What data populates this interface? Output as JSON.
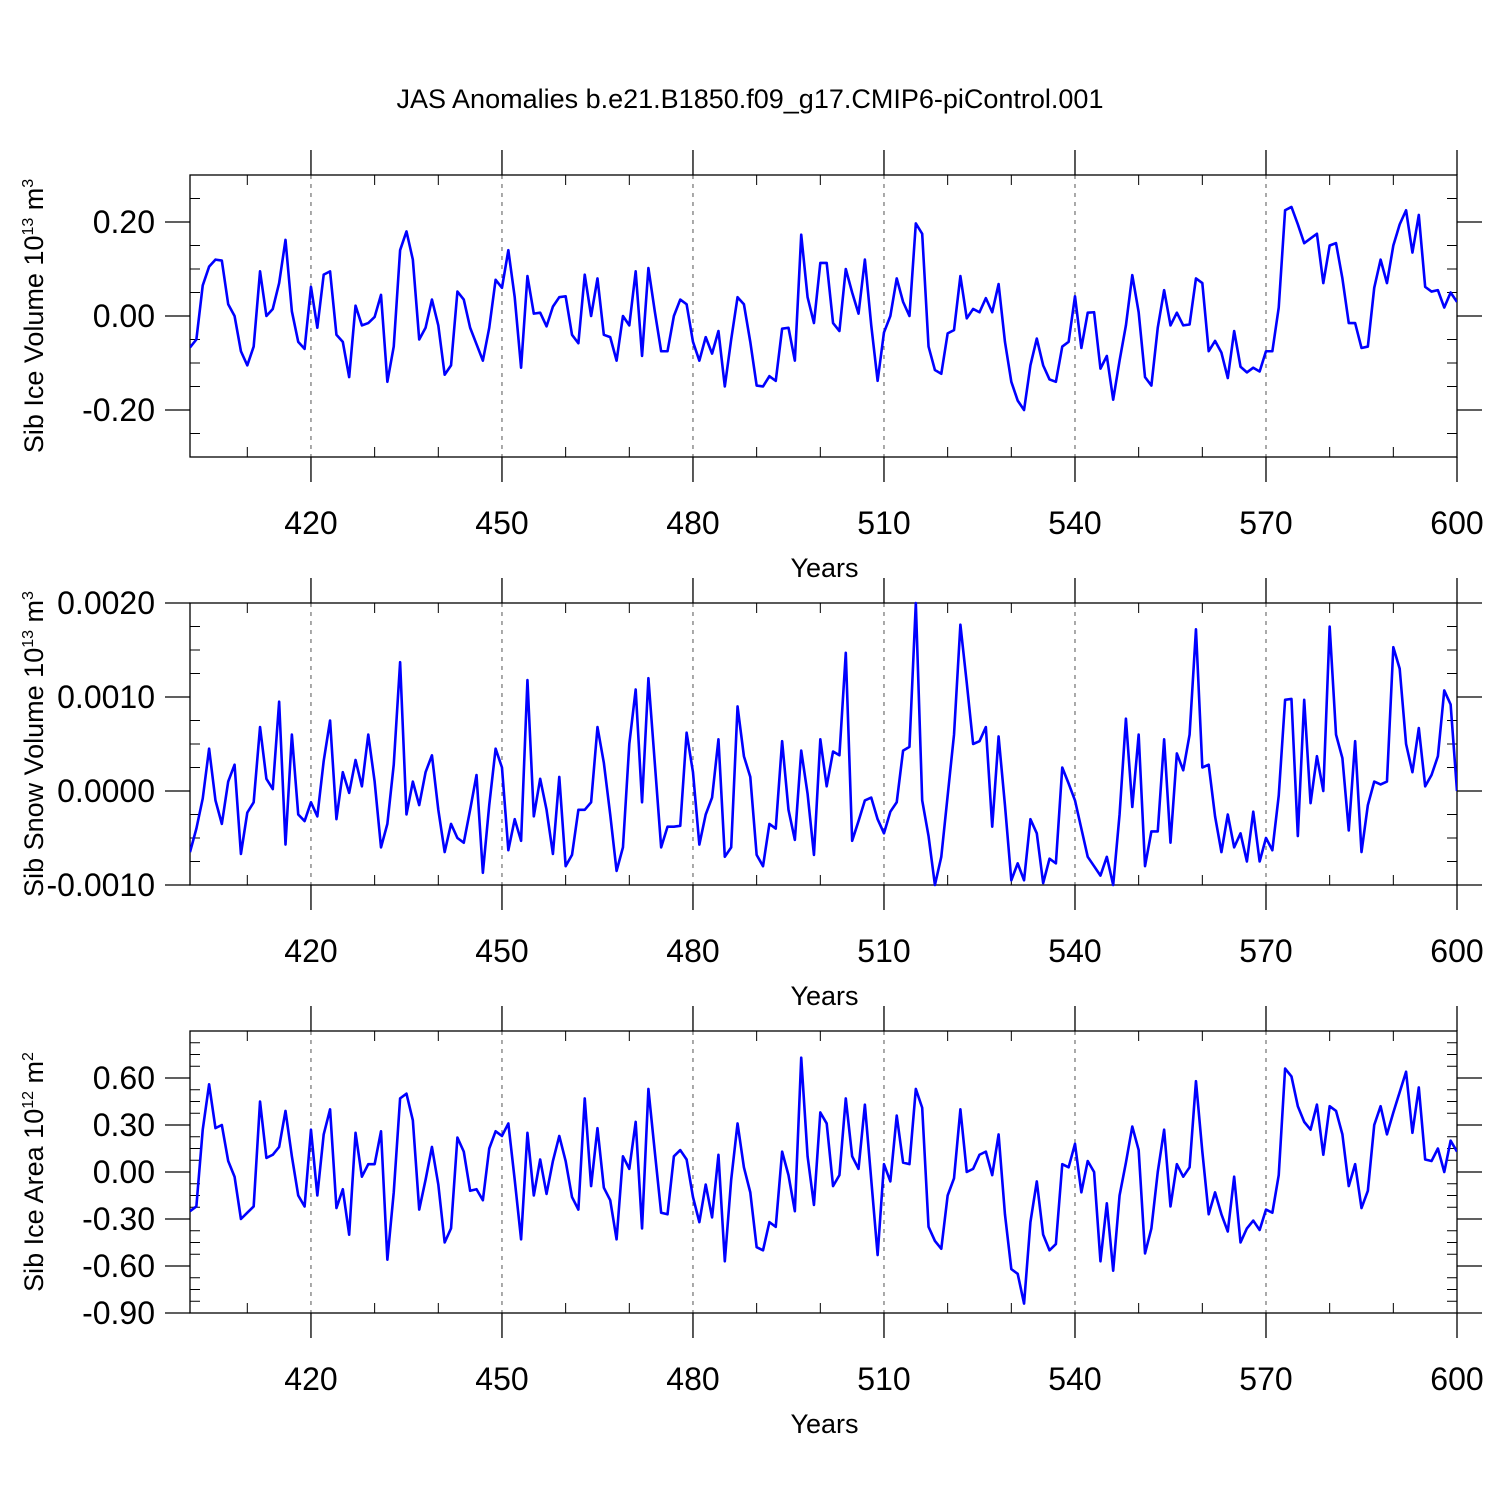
{
  "title": "JAS Anomalies b.e21.B1850.f09_g17.CMIP6-piControl.001",
  "line_color": "#0000ff",
  "chart_data": [
    {
      "type": "line",
      "id": "vol",
      "xlabel": "Years",
      "ylabel_base": "Sib Ice Volume 10",
      "ylabel_exp": "13",
      "ylabel_unit": " m",
      "ylabel_unit_exp": "3",
      "xlim": [
        401,
        600
      ],
      "ylim": [
        -0.3,
        0.3
      ],
      "xticks": [
        420,
        450,
        480,
        510,
        540,
        570,
        600
      ],
      "yticks": [
        -0.2,
        0.0,
        0.2
      ],
      "ytick_labels": [
        "-0.20",
        "0.00",
        "0.20"
      ],
      "grid": "dashed vertical lines at major x ticks",
      "series": [
        {
          "x_start": 401,
          "values": [
            -0.067,
            -0.05,
            0.065,
            0.105,
            0.12,
            0.118,
            0.025,
            0.0,
            -0.075,
            -0.105,
            -0.065,
            0.095,
            0.0,
            0.015,
            0.07,
            0.162,
            0.01,
            -0.055,
            -0.07,
            0.062,
            -0.025,
            0.088,
            0.095,
            -0.04,
            -0.055,
            -0.13,
            0.022,
            -0.02,
            -0.015,
            -0.002,
            0.045,
            -0.14,
            -0.065,
            0.14,
            0.18,
            0.12,
            -0.05,
            -0.025,
            0.035,
            -0.02,
            -0.125,
            -0.105,
            0.052,
            0.035,
            -0.025,
            -0.06,
            -0.095,
            -0.025,
            0.077,
            0.06,
            0.14,
            0.04,
            -0.11,
            0.085,
            0.005,
            0.007,
            -0.022,
            0.02,
            0.04,
            0.042,
            -0.04,
            -0.058,
            0.088,
            0.0,
            0.08,
            -0.04,
            -0.045,
            -0.095,
            0.0,
            -0.02,
            0.095,
            -0.085,
            0.102,
            0.01,
            -0.075,
            -0.075,
            0.0,
            0.035,
            0.025,
            -0.055,
            -0.095,
            -0.045,
            -0.08,
            -0.032,
            -0.15,
            -0.05,
            0.04,
            0.025,
            -0.055,
            -0.148,
            -0.15,
            -0.128,
            -0.138,
            -0.027,
            -0.025,
            -0.095,
            0.173,
            0.04,
            -0.015,
            0.113,
            0.113,
            -0.015,
            -0.032,
            0.1,
            0.05,
            0.005,
            0.12,
            -0.02,
            -0.138,
            -0.035,
            0.0,
            0.08,
            0.03,
            0.0,
            0.197,
            0.175,
            -0.065,
            -0.115,
            -0.123,
            -0.037,
            -0.03,
            0.085,
            -0.005,
            0.015,
            0.008,
            0.038,
            0.008,
            0.068,
            -0.055,
            -0.14,
            -0.18,
            -0.2,
            -0.105,
            -0.048,
            -0.105,
            -0.135,
            -0.14,
            -0.065,
            -0.055,
            0.042,
            -0.068,
            0.007,
            0.008,
            -0.112,
            -0.085,
            -0.178,
            -0.095,
            -0.02,
            0.087,
            0.008,
            -0.13,
            -0.148,
            -0.025,
            0.055,
            -0.02,
            0.007,
            -0.02,
            -0.018,
            0.08,
            0.07,
            -0.075,
            -0.053,
            -0.078,
            -0.132,
            -0.032,
            -0.108,
            -0.12,
            -0.11,
            -0.118,
            -0.075,
            -0.075,
            0.018,
            0.225,
            0.232,
            0.195,
            0.155,
            0.165,
            0.175,
            0.07,
            0.15,
            0.155,
            0.08,
            -0.015,
            -0.015,
            -0.068,
            -0.065,
            0.06,
            0.12,
            0.07,
            0.15,
            0.195,
            0.225,
            0.135,
            0.215,
            0.062,
            0.052,
            0.055,
            0.018,
            0.05,
            0.03
          ]
        }
      ]
    },
    {
      "type": "line",
      "id": "snow",
      "xlabel": "Years",
      "ylabel_base": "Sib Snow Volume 10",
      "ylabel_exp": "13",
      "ylabel_unit": " m",
      "ylabel_unit_exp": "3",
      "xlim": [
        401,
        600
      ],
      "ylim": [
        -0.001,
        0.002
      ],
      "xticks": [
        420,
        450,
        480,
        510,
        540,
        570,
        600
      ],
      "yticks": [
        -0.001,
        0.0,
        0.001,
        0.002
      ],
      "ytick_labels": [
        "-0.0010",
        "0.0000",
        "0.0010",
        "0.0020"
      ],
      "grid": "dashed vertical lines at major x ticks",
      "series": [
        {
          "x_start": 401,
          "values": [
            -0.00065,
            -0.0004,
            -8e-05,
            0.00045,
            -0.0001,
            -0.00035,
            0.0001,
            0.00028,
            -0.00067,
            -0.00023,
            -0.00012,
            0.00068,
            0.00013,
            2e-05,
            0.00095,
            -0.00057,
            0.0006,
            -0.00025,
            -0.00032,
            -0.00012,
            -0.00027,
            0.00032,
            0.00075,
            -0.0003,
            0.0002,
            -2e-05,
            0.00033,
            5e-05,
            0.0006,
            0.0001,
            -0.0006,
            -0.00035,
            0.00028,
            0.00137,
            -0.00025,
            0.0001,
            -0.00015,
            0.0002,
            0.00038,
            -0.0002,
            -0.00065,
            -0.00035,
            -0.0005,
            -0.00055,
            -0.0002,
            0.00017,
            -0.00087,
            -0.00015,
            0.00045,
            0.00025,
            -0.00063,
            -0.0003,
            -0.00053,
            0.00118,
            -0.00027,
            0.00013,
            -0.0002,
            -0.00067,
            0.00015,
            -0.0008,
            -0.00068,
            -0.0002,
            -0.0002,
            -0.00012,
            0.00068,
            0.0003,
            -0.00025,
            -0.00085,
            -0.0006,
            0.0005,
            0.00108,
            -0.00012,
            0.0012,
            0.0003,
            -0.0006,
            -0.00038,
            -0.00038,
            -0.00037,
            0.00062,
            0.0002,
            -0.00057,
            -0.00025,
            -7e-05,
            0.00055,
            -0.0007,
            -0.0006,
            0.0009,
            0.00037,
            0.00015,
            -0.00068,
            -0.0008,
            -0.00035,
            -0.0004,
            0.00053,
            -0.0002,
            -0.00052,
            0.00043,
            -3e-05,
            -0.00068,
            0.00055,
            5e-05,
            0.00042,
            0.00038,
            0.00147,
            -0.00053,
            -0.00032,
            -0.0001,
            -7e-05,
            -0.0003,
            -0.00045,
            -0.00022,
            -0.00012,
            0.00043,
            0.00047,
            0.002,
            -0.0001,
            -0.00048,
            -0.001,
            -0.0007,
            -5e-05,
            0.0006,
            0.00177,
            0.00115,
            0.0005,
            0.00053,
            0.00068,
            -0.00038,
            0.00058,
            -0.00015,
            -0.00095,
            -0.00077,
            -0.00095,
            -0.0003,
            -0.00045,
            -0.00098,
            -0.00072,
            -0.00077,
            0.00025,
            8e-05,
            -0.0001,
            -0.0004,
            -0.0007,
            -0.0008,
            -0.0009,
            -0.0007,
            -0.001,
            -0.00025,
            0.00077,
            -0.00017,
            0.0006,
            -0.0008,
            -0.00043,
            -0.00043,
            0.00055,
            -0.00055,
            0.0004,
            0.00022,
            0.0006,
            0.00172,
            0.00025,
            0.00028,
            -0.00027,
            -0.00065,
            -0.00025,
            -0.0006,
            -0.00045,
            -0.00075,
            -0.00022,
            -0.00075,
            -0.0005,
            -0.00063,
            -5e-05,
            0.00097,
            0.00098,
            -0.00048,
            0.00097,
            -0.00013,
            0.00037,
            0.0,
            0.00175,
            0.0006,
            0.00035,
            -0.00042,
            0.00053,
            -0.00065,
            -0.00015,
            0.0001,
            7e-05,
            0.0001,
            0.00153,
            0.0013,
            0.0005,
            0.0002,
            0.00067,
            5e-05,
            0.00017,
            0.00037,
            0.00107,
            0.00092,
            0.0
          ]
        }
      ]
    },
    {
      "type": "line",
      "id": "area",
      "xlabel": "Years",
      "ylabel_base": "Sib Ice Area 10",
      "ylabel_exp": "12",
      "ylabel_unit": " m",
      "ylabel_unit_exp": "2",
      "xlim": [
        401,
        600
      ],
      "ylim": [
        -0.9,
        0.9
      ],
      "xticks": [
        420,
        450,
        480,
        510,
        540,
        570,
        600
      ],
      "yticks": [
        -0.9,
        -0.6,
        -0.3,
        0.0,
        0.3,
        0.6
      ],
      "ytick_labels": [
        "-0.90",
        "-0.60",
        "-0.30",
        "0.00",
        "0.30",
        "0.60"
      ],
      "grid": "dashed vertical lines at major x ticks",
      "series": [
        {
          "x_start": 401,
          "values": [
            -0.25,
            -0.22,
            0.27,
            0.56,
            0.28,
            0.3,
            0.07,
            -0.03,
            -0.3,
            -0.26,
            -0.22,
            0.45,
            0.09,
            0.11,
            0.16,
            0.39,
            0.1,
            -0.15,
            -0.22,
            0.27,
            -0.15,
            0.24,
            0.4,
            -0.23,
            -0.11,
            -0.4,
            0.25,
            -0.03,
            0.05,
            0.05,
            0.26,
            -0.56,
            -0.13,
            0.47,
            0.5,
            0.33,
            -0.24,
            -0.05,
            0.16,
            -0.08,
            -0.45,
            -0.36,
            0.22,
            0.13,
            -0.12,
            -0.11,
            -0.18,
            0.15,
            0.26,
            0.23,
            0.31,
            -0.05,
            -0.43,
            0.25,
            -0.15,
            0.08,
            -0.14,
            0.07,
            0.23,
            0.07,
            -0.16,
            -0.24,
            0.47,
            -0.09,
            0.28,
            -0.1,
            -0.18,
            -0.43,
            0.1,
            0.02,
            0.32,
            -0.36,
            0.53,
            0.13,
            -0.26,
            -0.27,
            0.1,
            0.14,
            0.08,
            -0.16,
            -0.32,
            -0.08,
            -0.29,
            0.11,
            -0.57,
            -0.05,
            0.31,
            0.03,
            -0.13,
            -0.48,
            -0.5,
            -0.32,
            -0.35,
            0.13,
            -0.02,
            -0.25,
            0.73,
            0.1,
            -0.21,
            0.38,
            0.31,
            -0.09,
            -0.02,
            0.47,
            0.1,
            0.02,
            0.43,
            -0.05,
            -0.53,
            0.05,
            -0.06,
            0.36,
            0.06,
            0.05,
            0.53,
            0.41,
            -0.35,
            -0.44,
            -0.49,
            -0.15,
            -0.04,
            0.4,
            0.0,
            0.02,
            0.11,
            0.13,
            -0.02,
            0.24,
            -0.27,
            -0.62,
            -0.65,
            -0.84,
            -0.32,
            -0.06,
            -0.4,
            -0.5,
            -0.46,
            0.05,
            0.03,
            0.18,
            -0.13,
            0.07,
            0.0,
            -0.57,
            -0.2,
            -0.63,
            -0.15,
            0.06,
            0.29,
            0.14,
            -0.52,
            -0.36,
            0.0,
            0.27,
            -0.22,
            0.05,
            -0.03,
            0.03,
            0.58,
            0.13,
            -0.27,
            -0.13,
            -0.27,
            -0.38,
            -0.03,
            -0.45,
            -0.36,
            -0.31,
            -0.37,
            -0.24,
            -0.26,
            -0.02,
            0.66,
            0.61,
            0.42,
            0.32,
            0.27,
            0.43,
            0.11,
            0.42,
            0.39,
            0.24,
            -0.09,
            0.05,
            -0.23,
            -0.12,
            0.3,
            0.42,
            0.24,
            0.38,
            0.51,
            0.64,
            0.25,
            0.54,
            0.08,
            0.07,
            0.15,
            0.0,
            0.2,
            0.13
          ]
        }
      ]
    }
  ]
}
